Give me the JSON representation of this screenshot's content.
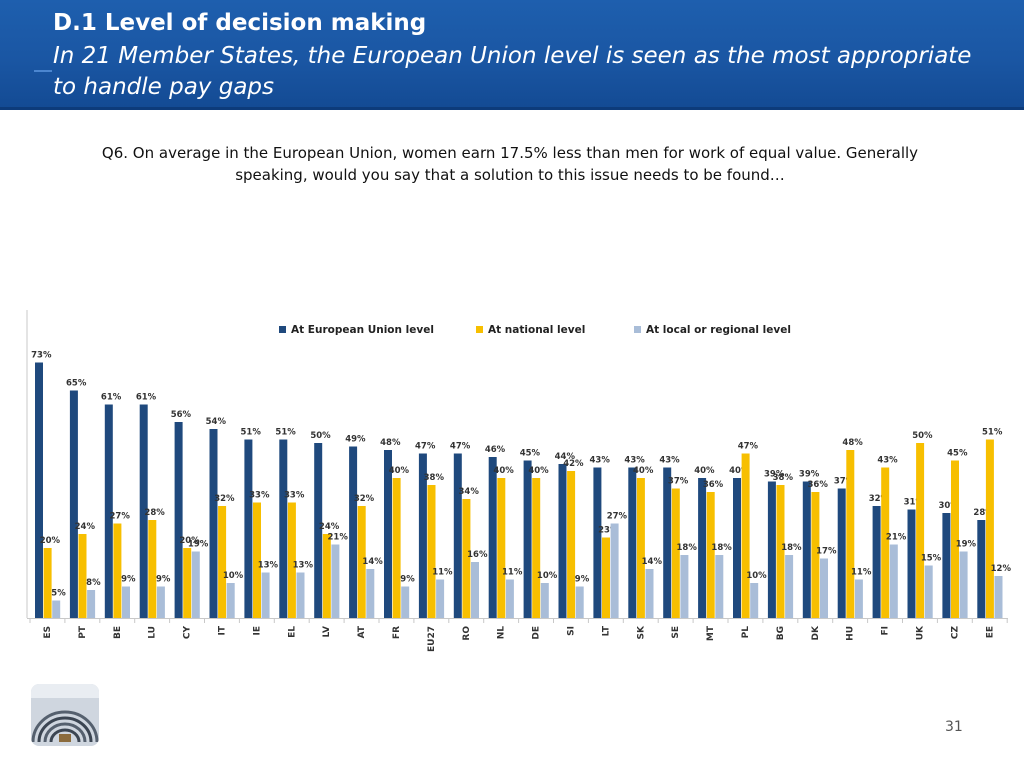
{
  "header": {
    "title": "D.1 Level of decision making",
    "subtitle": "In 21 Member States, the European Union level is seen as the most appropriate to handle pay gaps"
  },
  "question": "Q6. On average in the European Union, women earn 17.5% less than men for work of equal value. Generally speaking, would you say that a solution to this issue needs to be found…",
  "legend": {
    "eu": "At European Union level",
    "national": "At national level",
    "local": "At local or regional level"
  },
  "colors": {
    "eu": "#1f497d",
    "national": "#f7bf00",
    "local": "#a9bdd8"
  },
  "page_number": "31",
  "chart_data": {
    "type": "bar",
    "categories": [
      "ES",
      "PT",
      "BE",
      "LU",
      "CY",
      "IT",
      "IE",
      "EL",
      "LV",
      "AT",
      "FR",
      "EU27",
      "RO",
      "NL",
      "DE",
      "SI",
      "LT",
      "SK",
      "SE",
      "MT",
      "PL",
      "BG",
      "DK",
      "HU",
      "FI",
      "UK",
      "CZ",
      "EE"
    ],
    "series": [
      {
        "name": "At European Union level",
        "values": [
          73,
          65,
          61,
          61,
          56,
          54,
          51,
          51,
          50,
          49,
          48,
          47,
          47,
          46,
          45,
          44,
          43,
          43,
          43,
          40,
          40,
          39,
          39,
          37,
          32,
          31,
          30,
          28
        ]
      },
      {
        "name": "At national level",
        "values": [
          20,
          24,
          27,
          28,
          20,
          32,
          33,
          33,
          24,
          32,
          40,
          38,
          34,
          40,
          40,
          42,
          23,
          40,
          37,
          36,
          47,
          38,
          36,
          48,
          43,
          50,
          45,
          51
        ]
      },
      {
        "name": "At local or regional level",
        "values": [
          5,
          8,
          9,
          9,
          19,
          10,
          13,
          13,
          21,
          14,
          9,
          11,
          16,
          11,
          10,
          9,
          27,
          14,
          18,
          18,
          10,
          18,
          17,
          11,
          21,
          15,
          19,
          12
        ]
      }
    ],
    "ylim": [
      0,
      80
    ],
    "xlabel": "",
    "ylabel": "",
    "grid": false,
    "legend_position": "top"
  }
}
